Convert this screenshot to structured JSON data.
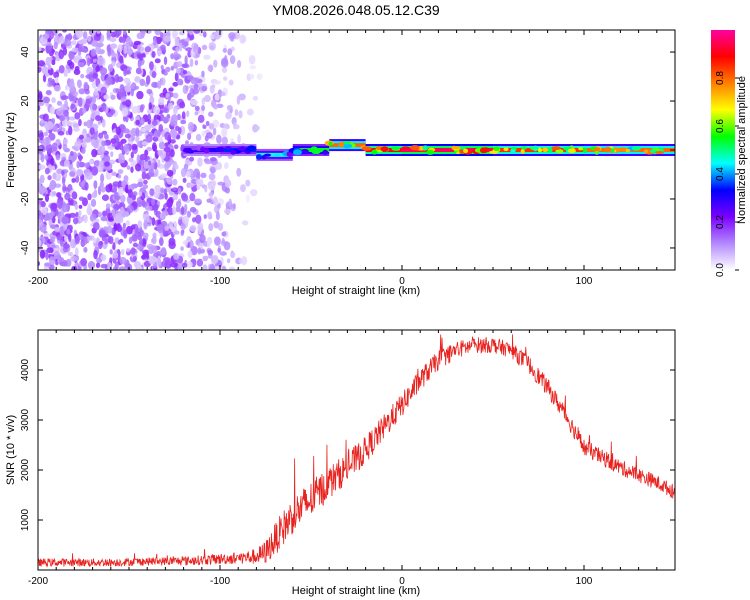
{
  "figure_title": "YM08.2026.048.05.12.C39",
  "chart_data": [
    {
      "type": "heatmap",
      "title": "YM08.2026.048.05.12.C39",
      "xlabel": "Height of straight line (km)",
      "ylabel": "Frequency (Hz)",
      "xlim": [
        -200,
        150
      ],
      "ylim": [
        -49,
        49
      ],
      "xticks": [
        -200,
        -100,
        0,
        100
      ],
      "xtick_labels": [
        "-200",
        "-100",
        "0",
        "100"
      ],
      "yticks": [
        -40,
        -20,
        0,
        20,
        40
      ],
      "ytick_labels": [
        "-40",
        "-20",
        "0",
        "20",
        "40"
      ],
      "colorbar": {
        "label": "Normalized spectral amplitude",
        "range": [
          0,
          1
        ],
        "ticks": [
          0.0,
          0.2,
          0.4,
          0.6,
          0.8
        ],
        "tick_labels": [
          "0.0",
          "0.2",
          "0.4",
          "0.6",
          "0.8"
        ],
        "colors": [
          "#ffffff",
          "#b388ff",
          "#7a00ff",
          "#0000ff",
          "#00ffff",
          "#00ff00",
          "#ffff00",
          "#ff8000",
          "#ff0000",
          "#ff00a0"
        ]
      },
      "noise_region_km": [
        -200,
        -75
      ],
      "noise_frequency_range_hz": [
        -49,
        49
      ],
      "signal_band_frequency_hz": 0,
      "signal_band_segments": [
        {
          "x": [
            -120,
            -100
          ],
          "freq_hz": 0,
          "amplitude": 0.3
        },
        {
          "x": [
            -100,
            -80
          ],
          "freq_hz": 0,
          "amplitude": 0.35
        },
        {
          "x": [
            -80,
            -60
          ],
          "freq_hz": -2,
          "amplitude": 0.45
        },
        {
          "x": [
            -60,
            -40
          ],
          "freq_hz": 0,
          "amplitude": 0.55
        },
        {
          "x": [
            -40,
            -20
          ],
          "freq_hz": 2,
          "amplitude": 0.8
        },
        {
          "x": [
            -20,
            0
          ],
          "freq_hz": 0,
          "amplitude": 0.9
        },
        {
          "x": [
            0,
            50
          ],
          "freq_hz": 0,
          "amplitude": 0.95
        },
        {
          "x": [
            50,
            100
          ],
          "freq_hz": 0,
          "amplitude": 0.85
        },
        {
          "x": [
            100,
            150
          ],
          "freq_hz": 0,
          "amplitude": 0.8
        }
      ]
    },
    {
      "type": "line",
      "xlabel": "Height of straight line (km)",
      "ylabel": "SNR (10 * v/v)",
      "xlim": [
        -200,
        150
      ],
      "ylim": [
        0,
        4800
      ],
      "xticks": [
        -200,
        -100,
        0,
        100
      ],
      "xtick_labels": [
        "-200",
        "-100",
        "0",
        "100"
      ],
      "yticks": [
        1000,
        2000,
        3000,
        4000
      ],
      "ytick_labels": [
        "1000",
        "2000",
        "3000",
        "4000"
      ],
      "series": [
        {
          "name": "SNR",
          "color": "#e8231f",
          "x": [
            -200,
            -180,
            -160,
            -140,
            -120,
            -100,
            -90,
            -80,
            -75,
            -70,
            -65,
            -60,
            -55,
            -50,
            -40,
            -30,
            -20,
            -10,
            0,
            10,
            20,
            30,
            40,
            50,
            60,
            70,
            80,
            90,
            100,
            110,
            120,
            130,
            140,
            150
          ],
          "y": [
            150,
            150,
            150,
            170,
            180,
            220,
            240,
            270,
            350,
            600,
            850,
            1100,
            1250,
            1400,
            1750,
            2050,
            2400,
            2850,
            3300,
            3800,
            4200,
            4400,
            4500,
            4500,
            4400,
            4100,
            3650,
            3100,
            2450,
            2250,
            2050,
            1900,
            1750,
            1550
          ],
          "noise_amplitude": [
            80,
            80,
            80,
            80,
            90,
            110,
            120,
            160,
            240,
            320,
            360,
            380,
            380,
            380,
            340,
            300,
            280,
            260,
            240,
            220,
            200,
            180,
            160,
            160,
            160,
            180,
            180,
            180,
            180,
            160,
            160,
            150,
            150,
            150
          ]
        }
      ]
    }
  ]
}
